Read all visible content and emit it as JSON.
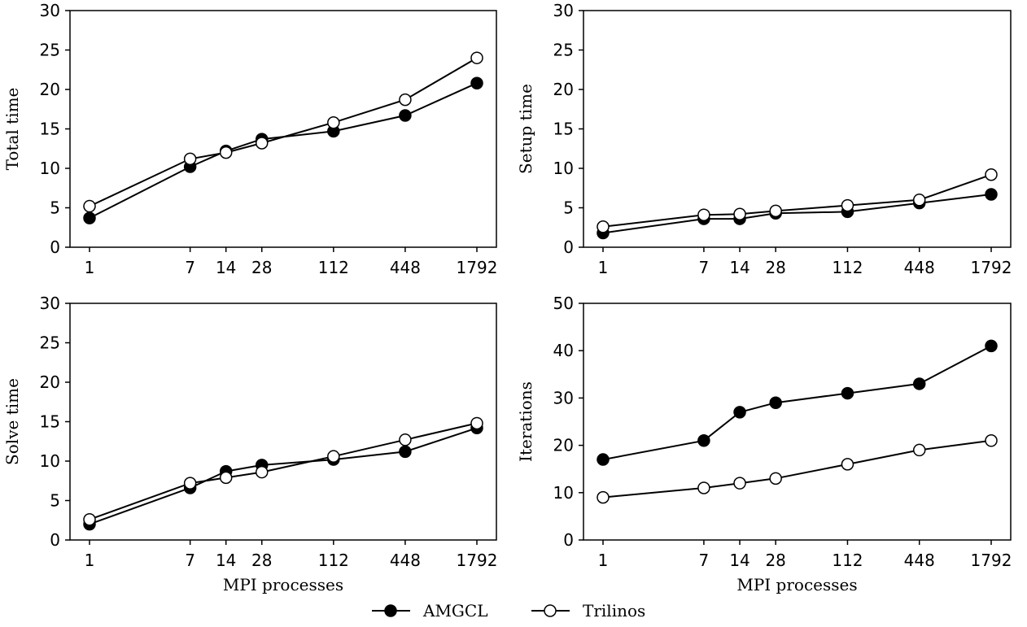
{
  "chart_data": [
    {
      "type": "line",
      "x": [
        1,
        7,
        14,
        28,
        112,
        448,
        1792
      ],
      "xscale": "log",
      "xlabel": "",
      "ylabel": "Total time",
      "ylim": [
        0,
        30
      ],
      "yticks": [
        "0",
        "5",
        "10",
        "15",
        "20",
        "25",
        "30"
      ],
      "xticks": [
        "1",
        "7",
        "14",
        "28",
        "112",
        "448",
        "1792"
      ],
      "grid": false,
      "series": [
        {
          "name": "AMGCL",
          "values": [
            3.7,
            10.2,
            12.2,
            13.7,
            14.7,
            16.7,
            20.8
          ]
        },
        {
          "name": "Trilinos",
          "values": [
            5.2,
            11.2,
            12.0,
            13.2,
            15.8,
            18.7,
            24.0
          ]
        }
      ]
    },
    {
      "type": "line",
      "x": [
        1,
        7,
        14,
        28,
        112,
        448,
        1792
      ],
      "xscale": "log",
      "xlabel": "",
      "ylabel": "Setup time",
      "ylim": [
        0,
        30
      ],
      "yticks": [
        "0",
        "5",
        "10",
        "15",
        "20",
        "25",
        "30"
      ],
      "xticks": [
        "1",
        "7",
        "14",
        "28",
        "112",
        "448",
        "1792"
      ],
      "grid": false,
      "series": [
        {
          "name": "AMGCL",
          "values": [
            1.8,
            3.6,
            3.6,
            4.3,
            4.5,
            5.6,
            6.7
          ]
        },
        {
          "name": "Trilinos",
          "values": [
            2.6,
            4.1,
            4.2,
            4.6,
            5.3,
            6.0,
            9.2
          ]
        }
      ]
    },
    {
      "type": "line",
      "x": [
        1,
        7,
        14,
        28,
        112,
        448,
        1792
      ],
      "xscale": "log",
      "xlabel": "MPI processes",
      "ylabel": "Solve time",
      "ylim": [
        0,
        30
      ],
      "yticks": [
        "0",
        "5",
        "10",
        "15",
        "20",
        "25",
        "30"
      ],
      "xticks": [
        "1",
        "7",
        "14",
        "28",
        "112",
        "448",
        "1792"
      ],
      "grid": false,
      "series": [
        {
          "name": "AMGCL",
          "values": [
            2.0,
            6.6,
            8.7,
            9.5,
            10.2,
            11.2,
            14.2
          ]
        },
        {
          "name": "Trilinos",
          "values": [
            2.6,
            7.2,
            7.9,
            8.6,
            10.6,
            12.7,
            14.8
          ]
        }
      ]
    },
    {
      "type": "line",
      "x": [
        1,
        7,
        14,
        28,
        112,
        448,
        1792
      ],
      "xscale": "log",
      "xlabel": "MPI processes",
      "ylabel": "Iterations",
      "ylim": [
        0,
        50
      ],
      "yticks": [
        "0",
        "10",
        "20",
        "30",
        "40",
        "50"
      ],
      "xticks": [
        "1",
        "7",
        "14",
        "28",
        "112",
        "448",
        "1792"
      ],
      "grid": false,
      "series": [
        {
          "name": "AMGCL",
          "values": [
            17,
            21,
            27,
            29,
            31,
            33,
            41
          ]
        },
        {
          "name": "Trilinos",
          "values": [
            9,
            11,
            12,
            13,
            16,
            19,
            21
          ]
        }
      ]
    }
  ],
  "legend": {
    "placement": "bottom-center",
    "items": [
      {
        "label": "AMGCL",
        "marker": "filled-circle"
      },
      {
        "label": "Trilinos",
        "marker": "open-circle"
      }
    ]
  },
  "colors": {
    "line": "#000000",
    "filled_marker": "#000000",
    "open_marker_fill": "#ffffff"
  }
}
